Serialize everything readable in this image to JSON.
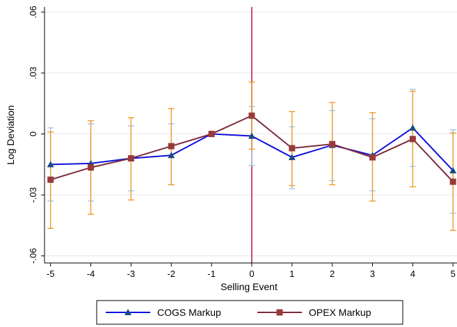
{
  "chart_data": {
    "type": "line",
    "xlabel": "Selling Event",
    "ylabel": "Log Deviation",
    "x": [
      -5,
      -4,
      -3,
      -2,
      -1,
      0,
      1,
      2,
      3,
      4,
      5
    ],
    "x_tick_labels": [
      "-5",
      "-4",
      "-3",
      "-2",
      "-1",
      "0",
      "1",
      "2",
      "3",
      "4",
      "5"
    ],
    "y_ticks": [
      -0.06,
      -0.03,
      0,
      0.03,
      0.06
    ],
    "y_tick_labels": [
      "-.06",
      "-.03",
      "0",
      ".03",
      ".06"
    ],
    "xlim": [
      -5.15,
      5.1
    ],
    "ylim": [
      -0.0635,
      0.0625
    ],
    "grid": true,
    "vline": {
      "x": 0,
      "color": "#b5163f"
    },
    "legend_position": "bottom",
    "series": [
      {
        "name": "COGS Markup",
        "color": "#1010dd",
        "marker": "triangle",
        "marker_color": "#1a4a80",
        "error_color": "#9cc4e8",
        "values": [
          -0.015,
          -0.0145,
          -0.012,
          -0.0105,
          0.0,
          -0.001,
          -0.0115,
          -0.0055,
          -0.0105,
          0.003,
          -0.018
        ],
        "lower": [
          -0.033,
          -0.033,
          -0.028,
          -0.025,
          0.0,
          -0.0155,
          -0.027,
          -0.023,
          -0.028,
          -0.016,
          -0.039
        ],
        "upper": [
          0.003,
          0.005,
          0.004,
          0.005,
          0.0,
          0.0135,
          0.0035,
          0.0115,
          0.0075,
          0.022,
          0.002
        ]
      },
      {
        "name": "OPEX Markup",
        "color": "#7a2a3a",
        "marker": "square",
        "marker_color": "#9a3a3a",
        "error_color": "#f0951c",
        "values": [
          -0.0225,
          -0.0165,
          -0.012,
          -0.006,
          0.0,
          0.009,
          -0.007,
          -0.005,
          -0.0115,
          -0.0025,
          -0.0235
        ],
        "lower": [
          -0.0465,
          -0.0395,
          -0.0325,
          -0.025,
          0.0,
          -0.0075,
          -0.0255,
          -0.025,
          -0.033,
          -0.026,
          -0.0475
        ],
        "upper": [
          0.001,
          0.0065,
          0.008,
          0.0125,
          0.0,
          0.0255,
          0.011,
          0.0155,
          0.0105,
          0.021,
          0.0005
        ]
      }
    ]
  }
}
